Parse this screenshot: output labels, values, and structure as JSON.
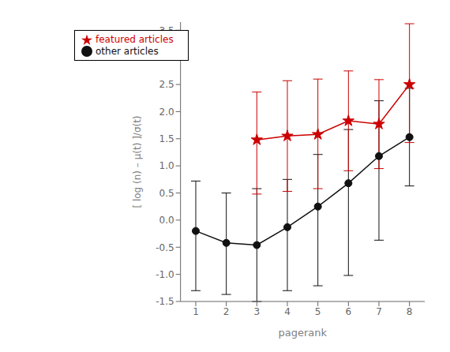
{
  "chart_data": {
    "type": "line",
    "xlabel": "pagerank",
    "ylabel": "[ log (n) – μ(t) ]/σ(t)",
    "xlim": [
      0.5,
      8.5
    ],
    "xticks": [
      1,
      2,
      3,
      4,
      5,
      6,
      7,
      8
    ],
    "ylim": [
      -1.5,
      3.65
    ],
    "yticks": [
      -1.5,
      {
        "value": -1.0,
        "label": "-1.0"
      },
      -0.5,
      {
        "value": 0,
        "label": "0.0"
      },
      0.5,
      {
        "value": 1.0,
        "label": "1.0"
      },
      1.5,
      {
        "value": 2.0,
        "label": "2.0"
      },
      2.5,
      {
        "value": 3.0,
        "label": "3.0"
      },
      3.5
    ],
    "grid": false,
    "legend": "upper left",
    "series": [
      {
        "name": "other articles",
        "color": "#111111",
        "marker": "circle",
        "line_style": "solid",
        "x": [
          1,
          2,
          3,
          4,
          5,
          6,
          7,
          8
        ],
        "values": [
          -0.2,
          -0.42,
          -0.46,
          -0.13,
          0.25,
          0.68,
          1.18,
          1.53
        ],
        "yerr_lower": [
          1.1,
          0.95,
          1.04,
          1.17,
          1.46,
          1.7,
          1.55,
          0.9
        ],
        "yerr_upper": [
          0.92,
          0.92,
          1.04,
          0.88,
          0.96,
          0.99,
          1.02,
          0.9
        ]
      },
      {
        "name": "featured articles",
        "color": "#cc0000",
        "marker": "star",
        "line_style": "solid",
        "x": [
          3,
          4,
          5,
          6,
          7,
          8
        ],
        "values": [
          1.48,
          1.55,
          1.58,
          1.83,
          1.77,
          2.5
        ],
        "yerr_lower": [
          1.0,
          1.02,
          1.0,
          0.92,
          0.82,
          1.07
        ],
        "yerr_upper": [
          0.88,
          1.02,
          1.02,
          0.92,
          0.82,
          1.12
        ]
      }
    ]
  }
}
